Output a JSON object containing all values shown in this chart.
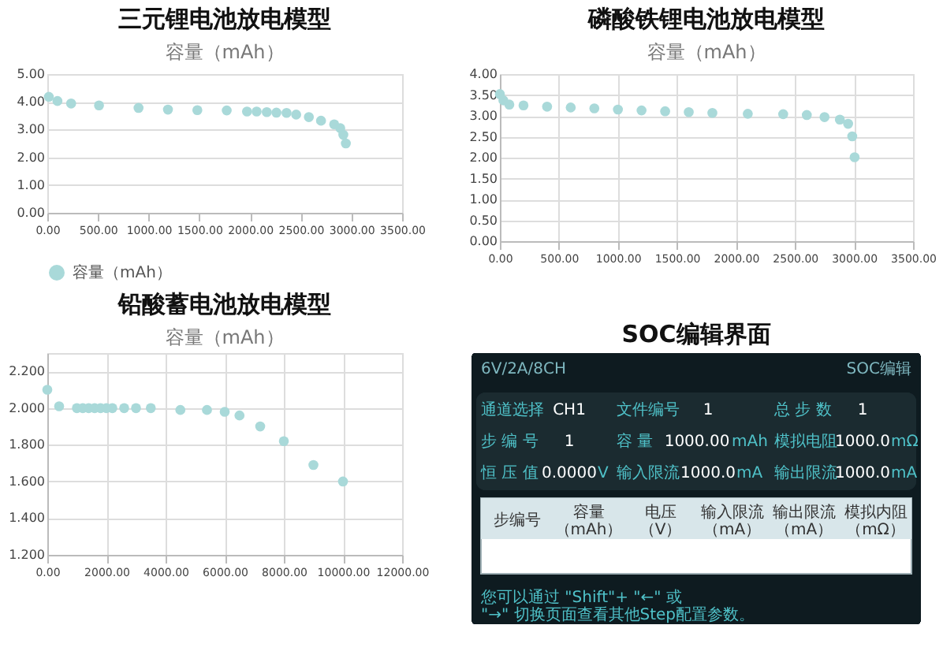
{
  "chart_data": [
    {
      "type": "scatter",
      "title": "三元锂电池放电模型",
      "subtitle": "容量（mAh）",
      "marker": "circle",
      "grid": "y",
      "legend": "bottom",
      "xlim": [
        0,
        3500
      ],
      "xticks": [
        {
          "value": 0,
          "label": "0.00"
        },
        {
          "value": 500,
          "label": "500.00"
        },
        {
          "value": 1000,
          "label": "1000.00"
        },
        {
          "value": 1500,
          "label": "1500.00"
        },
        {
          "value": 2000,
          "label": "2000.00"
        },
        {
          "value": 2500,
          "label": "2500.00"
        },
        {
          "value": 3000,
          "label": "3000.00"
        },
        {
          "value": 3500,
          "label": "3500.00"
        }
      ],
      "ylim": [
        0,
        5
      ],
      "yticks": [
        {
          "value": 0,
          "label": "0.00"
        },
        {
          "value": 1,
          "label": "1.00"
        },
        {
          "value": 2,
          "label": "2.00"
        },
        {
          "value": 3,
          "label": "3.00"
        },
        {
          "value": 4,
          "label": "4.00"
        },
        {
          "value": 5,
          "label": "5.00"
        }
      ],
      "series": [
        {
          "name": "容量（mAh）",
          "color": "#a9d9d9",
          "x": [
            15,
            100,
            235,
            510,
            900,
            1190,
            1480,
            1770,
            1970,
            2065,
            2165,
            2260,
            2360,
            2455,
            2580,
            2700,
            2830,
            2890,
            2920,
            2945
          ],
          "values": [
            4.18,
            4.03,
            3.94,
            3.87,
            3.78,
            3.72,
            3.7,
            3.69,
            3.65,
            3.65,
            3.63,
            3.61,
            3.6,
            3.54,
            3.45,
            3.32,
            3.19,
            3.05,
            2.81,
            2.5
          ]
        }
      ]
    },
    {
      "type": "scatter",
      "title": "磷酸铁锂电池放电模型",
      "subtitle": "容量（mAh）",
      "marker": "circle",
      "grid": true,
      "xlim": [
        0,
        3500
      ],
      "xticks": [
        {
          "value": 0,
          "label": "0.00"
        },
        {
          "value": 500,
          "label": "500.00"
        },
        {
          "value": 1000,
          "label": "1000.00"
        },
        {
          "value": 1500,
          "label": "1500.00"
        },
        {
          "value": 2000,
          "label": "2000.00"
        },
        {
          "value": 2500,
          "label": "2500.00"
        },
        {
          "value": 3000,
          "label": "3000.00"
        },
        {
          "value": 3500,
          "label": "3500.00"
        }
      ],
      "ylim": [
        0,
        4
      ],
      "yticks": [
        {
          "value": 0,
          "label": "0.00"
        },
        {
          "value": 0.5,
          "label": "0.50"
        },
        {
          "value": 1,
          "label": "1.00"
        },
        {
          "value": 1.5,
          "label": "1.50"
        },
        {
          "value": 2,
          "label": "2.00"
        },
        {
          "value": 2.5,
          "label": "2.50"
        },
        {
          "value": 3,
          "label": "3.00"
        },
        {
          "value": 3.5,
          "label": "3.50"
        },
        {
          "value": 4,
          "label": "4.00"
        }
      ],
      "series": [
        {
          "color": "#a9d9d9",
          "x": [
            0,
            30,
            80,
            200,
            400,
            600,
            800,
            1000,
            1200,
            1400,
            1600,
            1800,
            2100,
            2400,
            2600,
            2750,
            2880,
            2950,
            2985,
            3005
          ],
          "values": [
            3.52,
            3.37,
            3.27,
            3.25,
            3.22,
            3.2,
            3.18,
            3.15,
            3.13,
            3.11,
            3.09,
            3.07,
            3.05,
            3.04,
            3.02,
            2.97,
            2.91,
            2.81,
            2.51,
            2.01
          ]
        }
      ]
    },
    {
      "type": "scatter",
      "title": "铅酸蓄电池放电模型",
      "subtitle": "容量（mAh）",
      "marker": "circle",
      "grid": true,
      "xlim": [
        0,
        12000
      ],
      "xticks": [
        {
          "value": 0,
          "label": "0.00"
        },
        {
          "value": 2000,
          "label": "2000.00"
        },
        {
          "value": 4000,
          "label": "4000.00"
        },
        {
          "value": 6000,
          "label": "6000.00"
        },
        {
          "value": 8000,
          "label": "8000.00"
        },
        {
          "value": 10000,
          "label": "10000.00"
        },
        {
          "value": 12000,
          "label": "12000.00"
        }
      ],
      "ylim": [
        1.2,
        2.3
      ],
      "yticks": [
        {
          "value": 1.2,
          "label": "1.200"
        },
        {
          "value": 1.4,
          "label": "1.400"
        },
        {
          "value": 1.6,
          "label": "1.600"
        },
        {
          "value": 1.8,
          "label": "1.800"
        },
        {
          "value": 2.0,
          "label": "2.000"
        },
        {
          "value": 2.2,
          "label": "2.200"
        }
      ],
      "series": [
        {
          "color": "#a9d9d9",
          "x": [
            0,
            400,
            1000,
            1200,
            1400,
            1600,
            1800,
            2000,
            2200,
            2600,
            3000,
            3500,
            4500,
            5400,
            6000,
            6500,
            7200,
            8000,
            9000,
            10000
          ],
          "values": [
            2.1,
            2.01,
            2.0,
            2.0,
            2.0,
            2.0,
            2.0,
            2.0,
            2.0,
            2.0,
            2.0,
            2.0,
            1.99,
            1.99,
            1.98,
            1.96,
            1.9,
            1.82,
            1.69,
            1.6
          ]
        }
      ]
    },
    {
      "type": "other",
      "title": "SOC编辑界面",
      "annotations": [
        "6V/2A/8CH",
        "SOC编辑",
        "通道选择",
        "CH1",
        "文件编号",
        "1",
        "总 步 数",
        "1",
        "步 编 号",
        "1",
        "容 量",
        "1000.00",
        "mAh",
        "模拟电阻",
        "1000.0",
        "mΩ",
        "恒 压 值",
        "0.0000",
        "V",
        "输入限流",
        "1000.0",
        "mA",
        "输出限流",
        "1000.0",
        "mA",
        "步编号",
        "容量（mAh）",
        "电压（V）",
        "输入限流（mA）",
        "输出限流（mA）",
        "模拟内阻（mΩ）",
        "您可以通过 \"Shift\"+ \"←\" 或 \"→\" 切换页面查看其他Step配置参数。"
      ]
    }
  ]
}
